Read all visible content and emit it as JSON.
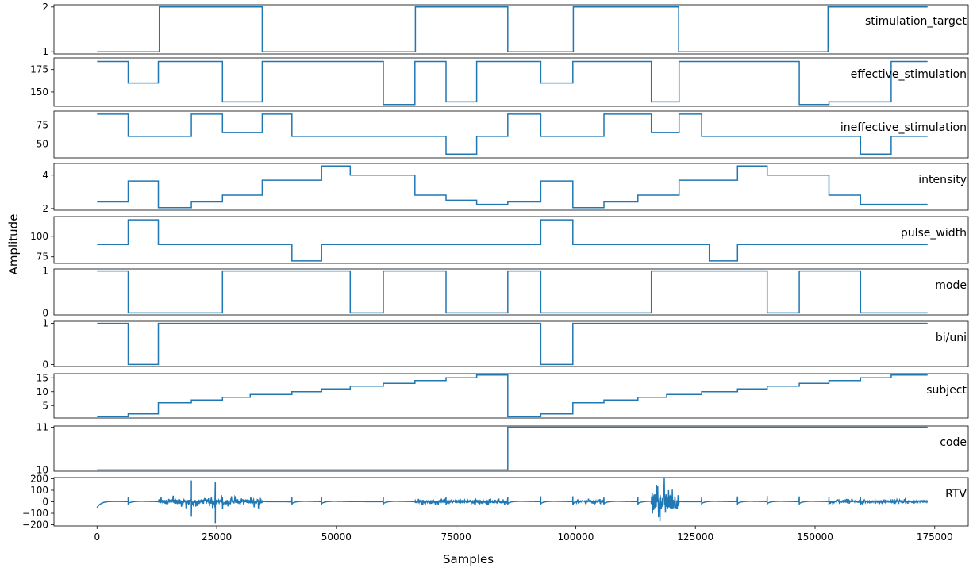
{
  "figure": {
    "xlabel": "Samples",
    "ylabel": "Amplitude",
    "line_color": "#1f77b4",
    "xlim": [
      -9000,
      182000
    ],
    "x_ticks": [
      0,
      25000,
      50000,
      75000,
      100000,
      125000,
      150000,
      175000
    ],
    "x_tick_labels": [
      "0",
      "25000",
      "50000",
      "75000",
      "100000",
      "125000",
      "150000",
      "175000"
    ]
  },
  "chart_data": [
    {
      "type": "line",
      "label": "stimulation_target",
      "ylim": [
        0.95,
        2.05
      ],
      "yticks": [
        1,
        2
      ],
      "ytick_labels": [
        "1",
        "2"
      ],
      "x": [
        0,
        13000,
        13000,
        34500,
        34500,
        66500,
        66500,
        85800,
        85800,
        99500,
        99500,
        121500,
        121500,
        152700,
        152700,
        173500
      ],
      "y": [
        1,
        1,
        2,
        2,
        1,
        1,
        2,
        2,
        1,
        1,
        2,
        2,
        1,
        1,
        2,
        2
      ]
    },
    {
      "type": "line",
      "label": "effective_stimulation",
      "ylim": [
        134,
        188
      ],
      "yticks": [
        150,
        175
      ],
      "ytick_labels": [
        "150",
        "175"
      ],
      "x": [
        0,
        6500,
        6500,
        12800,
        12800,
        26200,
        26200,
        34500,
        34500,
        59800,
        59800,
        66400,
        66400,
        72900,
        72900,
        79300,
        79300,
        92700,
        92700,
        99400,
        99400,
        115800,
        115800,
        121600,
        121600,
        146700,
        146700,
        152900,
        152900,
        165900,
        165900,
        173500
      ],
      "y": [
        184,
        184,
        160,
        160,
        184,
        184,
        139,
        139,
        184,
        184,
        136,
        136,
        184,
        184,
        139,
        139,
        184,
        184,
        160,
        160,
        184,
        184,
        139,
        139,
        184,
        184,
        136,
        136,
        139,
        139,
        184,
        184
      ]
    },
    {
      "type": "line",
      "label": "ineffective_stimulation",
      "ylim": [
        32,
        93
      ],
      "yticks": [
        50,
        75
      ],
      "ytick_labels": [
        "50",
        "75"
      ],
      "x": [
        0,
        6500,
        6500,
        19700,
        19700,
        26200,
        26200,
        34500,
        34500,
        40700,
        40700,
        72900,
        72900,
        79300,
        79300,
        85800,
        85800,
        92700,
        92700,
        105900,
        105900,
        115800,
        115800,
        121600,
        121600,
        126300,
        126300,
        159500,
        159500,
        165900,
        165900,
        173500
      ],
      "y": [
        89,
        89,
        60,
        60,
        89,
        89,
        65,
        65,
        89,
        89,
        60,
        60,
        37,
        37,
        60,
        60,
        89,
        89,
        60,
        60,
        89,
        89,
        65,
        65,
        89,
        89,
        60,
        60,
        37,
        37,
        60,
        60
      ]
    },
    {
      "type": "line",
      "label": "intensity",
      "ylim": [
        1.9,
        4.7
      ],
      "yticks": [
        2,
        4
      ],
      "ytick_labels": [
        "2",
        "4"
      ],
      "x": [
        0,
        6500,
        6500,
        12800,
        12800,
        19700,
        19700,
        26200,
        26200,
        34500,
        34500,
        46900,
        46900,
        52900,
        52900,
        66400,
        66400,
        72900,
        72900,
        79300,
        79300,
        85800,
        85800,
        92700,
        92700,
        99400,
        99400,
        105900,
        105900,
        113000,
        113000,
        121600,
        121600,
        133800,
        133800,
        140000,
        140000,
        152900,
        152900,
        159500,
        159500,
        173500
      ],
      "y": [
        2.4,
        2.4,
        3.65,
        3.65,
        2.05,
        2.05,
        2.4,
        2.4,
        2.8,
        2.8,
        3.7,
        3.7,
        4.55,
        4.55,
        4.0,
        4.0,
        2.8,
        2.8,
        2.5,
        2.5,
        2.25,
        2.25,
        2.4,
        2.4,
        3.65,
        3.65,
        2.05,
        2.05,
        2.4,
        2.4,
        2.8,
        2.8,
        3.7,
        3.7,
        4.55,
        4.55,
        4.0,
        4.0,
        2.8,
        2.8,
        2.25,
        2.25
      ]
    },
    {
      "type": "line",
      "label": "pulse_width",
      "ylim": [
        67,
        124
      ],
      "yticks": [
        75,
        100
      ],
      "ytick_labels": [
        "75",
        "100"
      ],
      "x": [
        0,
        6500,
        6500,
        12800,
        12800,
        40700,
        40700,
        46900,
        46900,
        92700,
        92700,
        99400,
        99400,
        127900,
        127900,
        133800,
        133800,
        173500
      ],
      "y": [
        90,
        90,
        120,
        120,
        90,
        90,
        70,
        70,
        90,
        90,
        120,
        120,
        90,
        90,
        70,
        70,
        90,
        90
      ]
    },
    {
      "type": "line",
      "label": "mode",
      "ylim": [
        -0.05,
        1.05
      ],
      "yticks": [
        0,
        1
      ],
      "ytick_labels": [
        "0",
        "1"
      ],
      "x": [
        0,
        6500,
        6500,
        26200,
        26200,
        52900,
        52900,
        59800,
        59800,
        72900,
        72900,
        85800,
        85800,
        92700,
        92700,
        115800,
        115800,
        140000,
        140000,
        146700,
        146700,
        159500,
        159500,
        173500
      ],
      "y": [
        1,
        1,
        0,
        0,
        1,
        1,
        0,
        0,
        1,
        1,
        0,
        0,
        1,
        1,
        0,
        0,
        1,
        1,
        0,
        0,
        1,
        1,
        0,
        0
      ]
    },
    {
      "type": "line",
      "label": "bi/uni",
      "ylim": [
        -0.05,
        1.05
      ],
      "yticks": [
        0,
        1
      ],
      "ytick_labels": [
        "0",
        "1"
      ],
      "x": [
        0,
        6500,
        6500,
        12800,
        12800,
        92700,
        92700,
        99400,
        99400,
        173500
      ],
      "y": [
        1,
        1,
        0,
        0,
        1,
        1,
        0,
        0,
        1,
        1
      ]
    },
    {
      "type": "line",
      "label": "subject",
      "ylim": [
        0.5,
        16.5
      ],
      "yticks": [
        5,
        10,
        15
      ],
      "ytick_labels": [
        "5",
        "10",
        "15"
      ],
      "x": [
        0,
        6500,
        6500,
        12800,
        12800,
        19700,
        19700,
        26200,
        26200,
        32000,
        32000,
        40700,
        40700,
        46900,
        46900,
        52900,
        52900,
        59800,
        59800,
        66400,
        66400,
        72900,
        72900,
        79300,
        79300,
        85800,
        85800,
        92700,
        92700,
        99400,
        99400,
        105900,
        105900,
        113000,
        113000,
        119000,
        119000,
        126300,
        126300,
        133800,
        133800,
        140000,
        140000,
        146700,
        146700,
        152900,
        152900,
        159500,
        159500,
        165900,
        165900,
        173500
      ],
      "y": [
        1,
        1,
        2,
        2,
        6,
        6,
        7,
        7,
        8,
        8,
        9,
        9,
        10,
        10,
        11,
        11,
        12,
        12,
        13,
        13,
        14,
        14,
        15,
        15,
        16,
        16,
        1,
        1,
        2,
        2,
        6,
        6,
        7,
        7,
        8,
        8,
        9,
        9,
        10,
        10,
        11,
        11,
        12,
        12,
        13,
        13,
        14,
        14,
        15,
        15,
        16,
        16
      ]
    },
    {
      "type": "line",
      "label": "code",
      "ylim": [
        9.97,
        11.03
      ],
      "yticks": [
        10,
        11
      ],
      "ytick_labels": [
        "10",
        "11"
      ],
      "x": [
        0,
        85800,
        85800,
        173500
      ],
      "y": [
        10,
        10,
        11,
        11
      ]
    },
    {
      "type": "line",
      "label": "RTV",
      "ylim": [
        -210,
        210
      ],
      "yticks": [
        -200,
        -100,
        0,
        100,
        200
      ],
      "ytick_labels": [
        "−200",
        "−100",
        "0",
        "100",
        "200"
      ],
      "baseline": 0,
      "spikes_at": [
        6500,
        19700,
        26200,
        40700,
        46900,
        59800,
        72900,
        85800,
        92700,
        99400,
        105900,
        113000,
        126300,
        133800,
        140000,
        146700,
        152900,
        159500
      ],
      "noisy_segments": [
        {
          "x": [
            12800,
            34500
          ],
          "amplitude": 30
        },
        {
          "x": [
            66400,
            85800
          ],
          "amplitude": 15
        },
        {
          "x": [
            99400,
            105900
          ],
          "amplitude": 12
        },
        {
          "x": [
            115800,
            121600
          ],
          "amplitude": 110
        },
        {
          "x": [
            152900,
            173500
          ],
          "amplitude": 12
        }
      ],
      "extreme_points": [
        {
          "x": 0,
          "y": -160
        },
        {
          "x": 19700,
          "y": 185
        },
        {
          "x": 19700,
          "y": -130
        },
        {
          "x": 24700,
          "y": 170
        },
        {
          "x": 24700,
          "y": -185
        }
      ]
    }
  ]
}
